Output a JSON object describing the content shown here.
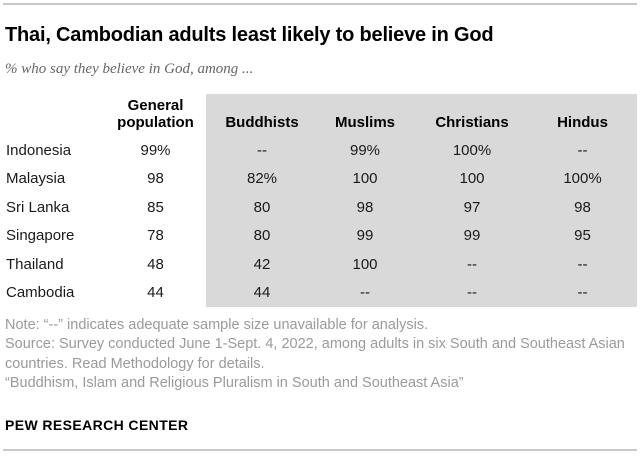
{
  "header": {
    "title": "Thai, Cambodian adults least likely to believe in God",
    "subtitle": "% who say they believe in God, among ..."
  },
  "table": {
    "columns": [
      "General population",
      "Buddhists",
      "Muslims",
      "Christians",
      "Hindus"
    ],
    "rows": [
      {
        "label": "Indonesia",
        "values": [
          "99%",
          "--",
          "99%",
          "100%",
          "--"
        ]
      },
      {
        "label": "Malaysia",
        "values": [
          "98",
          "82%",
          "100",
          "100",
          "100%"
        ]
      },
      {
        "label": "Sri Lanka",
        "values": [
          "85",
          "80",
          "98",
          "97",
          "98"
        ]
      },
      {
        "label": "Singapore",
        "values": [
          "78",
          "80",
          "99",
          "99",
          "95"
        ]
      },
      {
        "label": "Thailand",
        "values": [
          "48",
          "42",
          "100",
          "--",
          "--"
        ]
      },
      {
        "label": "Cambodia",
        "values": [
          "44",
          "44",
          "--",
          "--",
          "--"
        ]
      }
    ]
  },
  "notes": {
    "note": "Note: “--” indicates adequate sample size unavailable for analysis.",
    "source": "Source: Survey conducted June 1-Sept. 4, 2022, among adults in six South and Southeast Asian countries. Read Methodology for details.",
    "citation": "“Buddhism, Islam and Religious Pluralism in South and Southeast Asia”"
  },
  "footer": {
    "brand": "PEW RESEARCH CENTER"
  },
  "colors": {
    "shade": "#d9d9d9",
    "title_text": "#000000",
    "subtitle_text": "#666666",
    "table_text": "#1a1a1a",
    "notes_text": "#9a9a9a",
    "rule": "#c9c9c9"
  },
  "chart_data": {
    "type": "table",
    "title": "Thai, Cambodian adults least likely to believe in God",
    "subtitle": "% who say they believe in God, among ...",
    "categories": [
      "Indonesia",
      "Malaysia",
      "Sri Lanka",
      "Singapore",
      "Thailand",
      "Cambodia"
    ],
    "series": [
      {
        "name": "General population",
        "values": [
          99,
          98,
          85,
          78,
          48,
          44
        ]
      },
      {
        "name": "Buddhists",
        "values": [
          null,
          82,
          80,
          80,
          42,
          44
        ]
      },
      {
        "name": "Muslims",
        "values": [
          99,
          100,
          98,
          99,
          100,
          null
        ]
      },
      {
        "name": "Christians",
        "values": [
          100,
          100,
          97,
          99,
          null,
          null
        ]
      },
      {
        "name": "Hindus",
        "values": [
          null,
          100,
          98,
          95,
          null,
          null
        ]
      }
    ],
    "unit": "%",
    "missing_marker": "--",
    "notes": "null means adequate sample size unavailable for analysis"
  }
}
